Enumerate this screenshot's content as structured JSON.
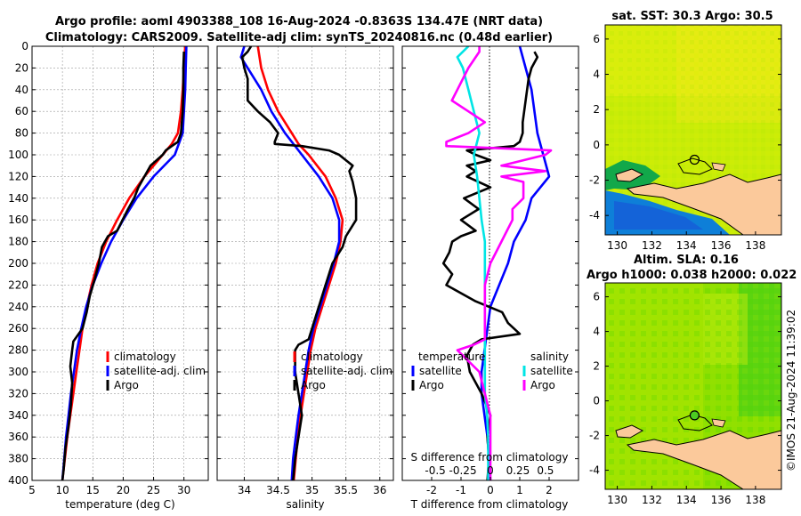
{
  "header": {
    "line1": "Argo profile: aoml 4903388_108 16-Aug-2024 -0.8363S 134.47E (NRT data)",
    "line2": "Climatology: CARS2009. Satellite-adj clim: synTS_20240816.nc (0.48d earlier)"
  },
  "timestamp": "©IMOS 21-Aug-2024 11:39:02",
  "colors": {
    "climatology": "#ff0000",
    "satellite": "#0000ff",
    "argo": "#000000",
    "sal_sat": "#00e5e5",
    "sal_argo": "#ff00ff",
    "land": "#fbc99b"
  },
  "chart_data": [
    {
      "type": "line",
      "title": "",
      "xlabel": "temperature (deg C)",
      "ylabel": "",
      "xlim": [
        5,
        34
      ],
      "ylim": [
        0,
        400
      ],
      "xticks": [
        5,
        10,
        15,
        20,
        25,
        30
      ],
      "yticks": [
        0,
        20,
        40,
        60,
        80,
        100,
        120,
        140,
        160,
        180,
        200,
        220,
        240,
        260,
        280,
        300,
        320,
        340,
        360,
        380,
        400
      ],
      "legend": [
        "climatology",
        "satellite-adj. clim",
        "Argo"
      ],
      "series": [
        {
          "name": "climatology",
          "depth": [
            0,
            20,
            40,
            60,
            80,
            90,
            100,
            120,
            140,
            160,
            180,
            200,
            220,
            240,
            260,
            280,
            300,
            320,
            340,
            360,
            380,
            400
          ],
          "values": [
            30.2,
            30.0,
            29.8,
            29.5,
            29.0,
            28.0,
            26.5,
            23.5,
            21.0,
            19.0,
            17.2,
            15.8,
            14.8,
            14.0,
            13.3,
            12.8,
            12.3,
            11.8,
            11.3,
            10.8,
            10.4,
            10.0
          ]
        },
        {
          "name": "satellite-adj. clim",
          "depth": [
            0,
            20,
            40,
            60,
            80,
            100,
            120,
            140,
            160,
            180,
            200,
            220,
            240,
            260,
            280,
            300,
            320,
            340,
            360,
            380,
            400
          ],
          "values": [
            30.4,
            30.3,
            30.2,
            30.0,
            29.8,
            28.5,
            25.0,
            22.2,
            20.0,
            18.0,
            16.4,
            15.0,
            13.9,
            13.1,
            12.4,
            11.9,
            11.4,
            11.0,
            10.6,
            10.3,
            10.0
          ]
        },
        {
          "name": "Argo",
          "depth": [
            5,
            20,
            40,
            60,
            80,
            88,
            92,
            96,
            100,
            105,
            110,
            120,
            130,
            140,
            150,
            160,
            170,
            175,
            185,
            200,
            215,
            230,
            245,
            260,
            268,
            272,
            280,
            295,
            310,
            330,
            350,
            370,
            390,
            400
          ],
          "values": [
            30.0,
            29.9,
            29.9,
            29.8,
            29.5,
            29.0,
            28.0,
            27.0,
            26.5,
            25.5,
            24.5,
            23.5,
            22.5,
            21.8,
            20.8,
            19.9,
            19.0,
            17.5,
            16.5,
            16.0,
            15.3,
            14.5,
            14.0,
            13.3,
            12.3,
            11.8,
            11.6,
            11.3,
            11.6,
            11.4,
            11.0,
            10.5,
            10.2,
            10.0
          ]
        }
      ]
    },
    {
      "type": "line",
      "title": "",
      "xlabel": "salinity",
      "ylabel": "",
      "xlim": [
        33.6,
        36.2
      ],
      "ylim": [
        0,
        400
      ],
      "xticks": [
        34,
        34.5,
        35,
        35.5,
        36
      ],
      "legend": [
        "climatology",
        "satellite-adj. clim",
        "Argo"
      ],
      "series": [
        {
          "name": "climatology",
          "depth": [
            0,
            20,
            40,
            60,
            80,
            90,
            100,
            120,
            140,
            160,
            180,
            200,
            220,
            240,
            260,
            280,
            300,
            320,
            340,
            360,
            380,
            400
          ],
          "values": [
            34.2,
            34.25,
            34.35,
            34.5,
            34.7,
            34.8,
            34.95,
            35.2,
            35.35,
            35.45,
            35.42,
            35.35,
            35.25,
            35.15,
            35.05,
            34.98,
            34.93,
            34.88,
            34.83,
            34.79,
            34.76,
            34.73
          ]
        },
        {
          "name": "satellite-adj. clim",
          "depth": [
            0,
            10,
            20,
            40,
            60,
            80,
            100,
            120,
            140,
            160,
            180,
            200,
            220,
            240,
            260,
            280,
            300,
            320,
            340,
            360,
            380,
            400
          ],
          "values": [
            34.0,
            33.95,
            34.05,
            34.25,
            34.4,
            34.6,
            34.85,
            35.1,
            35.3,
            35.4,
            35.4,
            35.32,
            35.22,
            35.12,
            35.02,
            34.95,
            34.9,
            34.85,
            34.8,
            34.76,
            34.72,
            34.7
          ]
        },
        {
          "name": "Argo",
          "depth": [
            0,
            5,
            10,
            20,
            30,
            50,
            60,
            70,
            80,
            88,
            90,
            92,
            96,
            100,
            105,
            110,
            115,
            125,
            140,
            160,
            175,
            185,
            200,
            220,
            240,
            260,
            270,
            275,
            280,
            300,
            320,
            340,
            360,
            380,
            400
          ],
          "values": [
            34.1,
            34.05,
            33.97,
            34.0,
            34.05,
            34.05,
            34.2,
            34.38,
            34.5,
            34.45,
            34.45,
            34.85,
            35.25,
            35.4,
            35.5,
            35.6,
            35.55,
            35.6,
            35.65,
            35.65,
            35.5,
            35.45,
            35.3,
            35.2,
            35.1,
            35.0,
            34.95,
            34.8,
            34.75,
            34.75,
            34.8,
            34.85,
            34.8,
            34.75,
            34.72
          ]
        }
      ]
    },
    {
      "type": "line",
      "title": "",
      "xlabel": "T difference from climatology",
      "xlabel2": "S difference from climatology",
      "ylabel": "",
      "xlim": [
        -3,
        3
      ],
      "xlim2": [
        -0.8,
        0.8
      ],
      "ylim": [
        0,
        400
      ],
      "xticks": [
        -2,
        -1,
        0,
        1,
        2
      ],
      "xticks2": [
        "-0.5",
        "-0.25",
        "0",
        "0.25",
        "0.5"
      ],
      "legend_temperature": [
        "temperature",
        "satellite",
        "Argo"
      ],
      "legend_salinity": [
        "salinity",
        "satellite",
        "Argo"
      ],
      "series": [
        {
          "name": "T satellite",
          "axis": "T",
          "depth": [
            0,
            20,
            40,
            60,
            80,
            100,
            120,
            140,
            160,
            180,
            200,
            220,
            240,
            260,
            280,
            300,
            320,
            340,
            360,
            380,
            400
          ],
          "values": [
            1.0,
            1.2,
            1.4,
            1.5,
            1.6,
            1.8,
            2.0,
            1.4,
            1.2,
            0.8,
            0.6,
            0.3,
            0.0,
            -0.1,
            -0.2,
            -0.3,
            -0.3,
            -0.2,
            -0.1,
            -0.05,
            0.0
          ]
        },
        {
          "name": "T Argo",
          "axis": "T",
          "depth": [
            5,
            10,
            20,
            30,
            50,
            70,
            80,
            88,
            92,
            96,
            100,
            105,
            110,
            115,
            120,
            130,
            140,
            150,
            160,
            170,
            175,
            180,
            190,
            200,
            210,
            220,
            235,
            245,
            255,
            265,
            270,
            275,
            285,
            300,
            320,
            340,
            360,
            380,
            400
          ],
          "values": [
            1.5,
            1.6,
            1.4,
            1.3,
            1.2,
            1.1,
            1.1,
            1.0,
            0.8,
            -0.8,
            -0.5,
            0.0,
            -0.8,
            -0.5,
            -0.8,
            0.0,
            -0.9,
            -0.4,
            -1.0,
            -0.5,
            -1.0,
            -1.3,
            -1.4,
            -1.6,
            -1.3,
            -1.5,
            -0.5,
            0.4,
            0.6,
            1.0,
            -0.3,
            -0.6,
            -0.8,
            -0.7,
            -0.3,
            0.0,
            -0.1,
            -0.05,
            -0.1
          ]
        },
        {
          "name": "S satellite",
          "axis": "S",
          "depth": [
            0,
            10,
            20,
            40,
            60,
            80,
            100,
            120,
            140,
            160,
            180,
            200,
            220,
            240,
            260,
            280,
            300,
            320,
            340,
            360,
            380,
            400
          ],
          "values": [
            -0.2,
            -0.3,
            -0.25,
            -0.2,
            -0.15,
            -0.1,
            -0.15,
            -0.12,
            -0.1,
            -0.08,
            -0.05,
            -0.05,
            -0.05,
            -0.05,
            -0.05,
            -0.05,
            -0.05,
            -0.05,
            -0.03,
            -0.02,
            -0.02,
            -0.02
          ]
        },
        {
          "name": "S Argo",
          "axis": "S",
          "depth": [
            0,
            5,
            20,
            40,
            50,
            60,
            70,
            80,
            88,
            92,
            96,
            100,
            110,
            115,
            120,
            125,
            140,
            150,
            160,
            170,
            180,
            200,
            220,
            240,
            260,
            270,
            275,
            280,
            290,
            300,
            320,
            340,
            360,
            380,
            400
          ],
          "values": [
            -0.1,
            -0.1,
            -0.2,
            -0.3,
            -0.35,
            -0.2,
            -0.05,
            -0.2,
            -0.4,
            -0.4,
            0.55,
            0.5,
            0.1,
            0.5,
            0.1,
            0.3,
            0.3,
            0.2,
            0.2,
            0.15,
            0.1,
            0.0,
            -0.05,
            -0.05,
            -0.05,
            -0.05,
            -0.15,
            -0.3,
            -0.2,
            -0.1,
            -0.05,
            0.0,
            0.0,
            0.0,
            0.0
          ]
        }
      ]
    },
    {
      "type": "heatmap",
      "title": "sat. SST: 30.3 Argo: 30.5",
      "xlim": [
        129.3,
        139.5
      ],
      "ylim": [
        -5.1,
        6.8
      ],
      "xticks": [
        130,
        132,
        134,
        136,
        138
      ],
      "yticks": [
        -4,
        -2,
        0,
        2,
        4,
        6
      ],
      "marker": {
        "lon": 134.47,
        "lat": -0.84
      }
    },
    {
      "type": "heatmap",
      "title": "Altim. SLA: 0.16",
      "subtitle": "Argo h1000: 0.038 h2000: 0.022",
      "xlim": [
        129.3,
        139.5
      ],
      "ylim": [
        -5.1,
        6.8
      ],
      "xticks": [
        130,
        132,
        134,
        136,
        138
      ],
      "yticks": [
        -4,
        -2,
        0,
        2,
        4,
        6
      ],
      "marker": {
        "lon": 134.47,
        "lat": -0.84
      }
    }
  ]
}
